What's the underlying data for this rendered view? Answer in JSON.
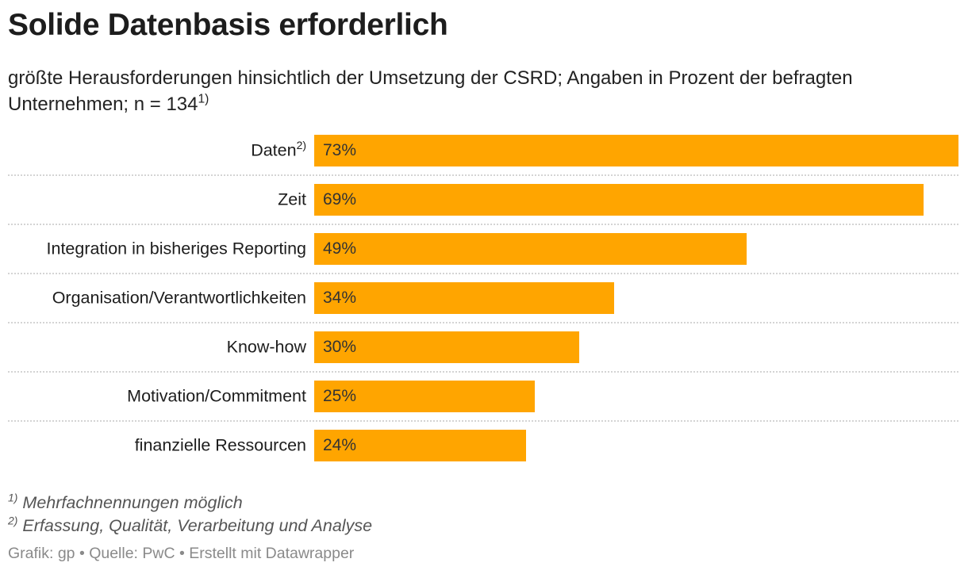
{
  "chart_data": {
    "type": "bar",
    "orientation": "horizontal",
    "title": "Solide Datenbasis erforderlich",
    "subtitle": "größte Herausforderungen hinsichtlich der Umsetzung der CSRD; Angaben in Prozent der befragten Unternehmen; n = 134",
    "subtitle_sup": "1)",
    "categories": [
      "Daten",
      "Zeit",
      "Integration in bisheriges Reporting",
      "Organisation/Verantwortlichkeiten",
      "Know-how",
      "Motivation/Commitment",
      "finanzielle Ressourcen"
    ],
    "category_sups": [
      "2)",
      "",
      "",
      "",
      "",
      "",
      ""
    ],
    "values": [
      73,
      69,
      49,
      34,
      30,
      25,
      24
    ],
    "value_labels": [
      "73%",
      "69%",
      "49%",
      "34%",
      "30%",
      "25%",
      "24%"
    ],
    "xlim": [
      0,
      73
    ],
    "bar_color": "#FFA500",
    "grid": false
  },
  "notes": [
    {
      "sup": "1)",
      "text": "Mehrfachnennungen möglich"
    },
    {
      "sup": "2)",
      "text": "Erfassung, Qualität, Verarbeitung und Analyse"
    }
  ],
  "credit": "Grafik: gp • Quelle: PwC • Erstellt mit Datawrapper"
}
